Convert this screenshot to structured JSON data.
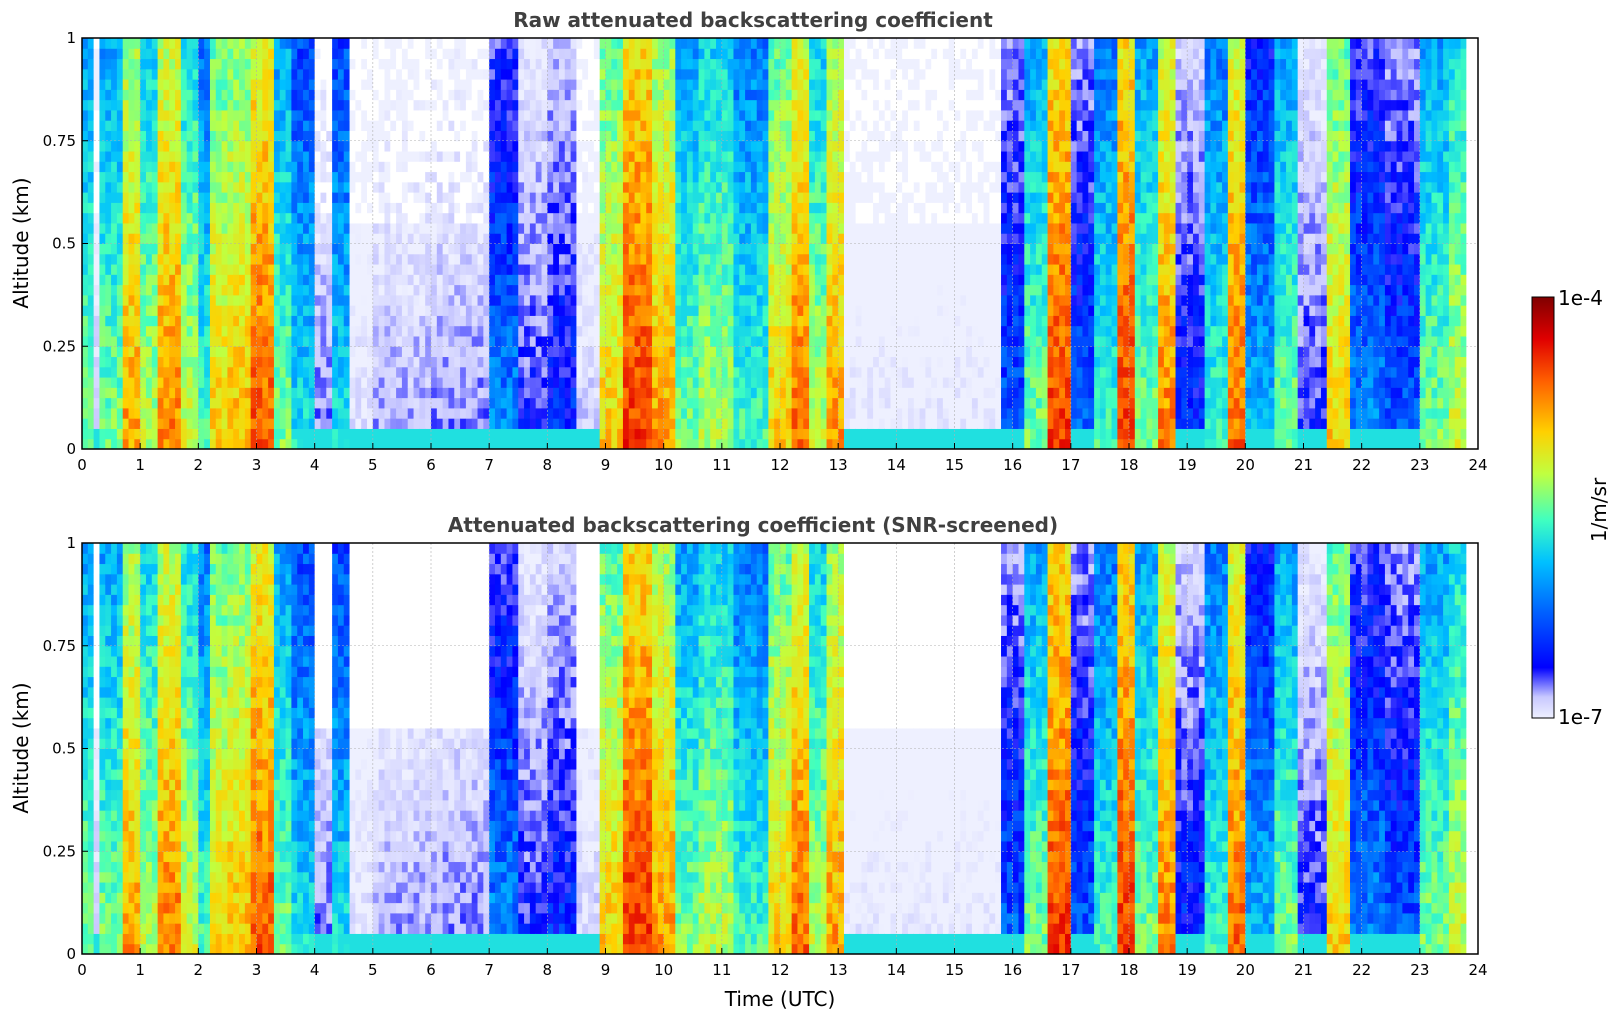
{
  "chart_data": [
    {
      "type": "heatmap",
      "title": "Raw attenuated backscattering coefficient",
      "xlabel": "",
      "ylabel": "Altitude (km)",
      "xlim": [
        0,
        24
      ],
      "ylim": [
        0,
        1
      ],
      "x_ticks": [
        "0",
        "1",
        "2",
        "3",
        "4",
        "5",
        "6",
        "7",
        "8",
        "9",
        "10",
        "11",
        "12",
        "13",
        "14",
        "15",
        "16",
        "17",
        "18",
        "19",
        "20",
        "21",
        "22",
        "23",
        "24"
      ],
      "y_ticks": [
        "0",
        "0.25",
        "0.5",
        "0.75",
        "1"
      ],
      "grid": true,
      "screened": false,
      "time_bands": [
        {
          "start": 0.0,
          "end": 0.2,
          "level": 0.55
        },
        {
          "start": 0.2,
          "end": 0.35,
          "level": 0.1
        },
        {
          "start": 0.35,
          "end": 0.7,
          "level": 0.55
        },
        {
          "start": 0.7,
          "end": 1.0,
          "level": 0.75
        },
        {
          "start": 1.0,
          "end": 1.3,
          "level": 0.6
        },
        {
          "start": 1.3,
          "end": 1.7,
          "level": 0.78
        },
        {
          "start": 1.7,
          "end": 2.0,
          "level": 0.62
        },
        {
          "start": 2.0,
          "end": 2.2,
          "level": 0.5
        },
        {
          "start": 2.2,
          "end": 2.5,
          "level": 0.7
        },
        {
          "start": 2.5,
          "end": 2.9,
          "level": 0.72
        },
        {
          "start": 2.9,
          "end": 3.3,
          "level": 0.82
        },
        {
          "start": 3.3,
          "end": 3.6,
          "level": 0.55
        },
        {
          "start": 3.6,
          "end": 4.0,
          "level": 0.45
        },
        {
          "start": 4.0,
          "end": 4.3,
          "level": 0.15
        },
        {
          "start": 4.3,
          "end": 4.6,
          "level": 0.45
        },
        {
          "start": 4.6,
          "end": 5.0,
          "level": 0.05
        },
        {
          "start": 5.0,
          "end": 6.0,
          "level": 0.12
        },
        {
          "start": 6.0,
          "end": 7.0,
          "level": 0.14
        },
        {
          "start": 7.0,
          "end": 7.5,
          "level": 0.35
        },
        {
          "start": 7.5,
          "end": 8.0,
          "level": 0.2
        },
        {
          "start": 8.0,
          "end": 8.5,
          "level": 0.25
        },
        {
          "start": 8.5,
          "end": 8.9,
          "level": 0.08
        },
        {
          "start": 8.9,
          "end": 9.3,
          "level": 0.7
        },
        {
          "start": 9.3,
          "end": 9.8,
          "level": 0.85
        },
        {
          "start": 9.8,
          "end": 10.2,
          "level": 0.75
        },
        {
          "start": 10.2,
          "end": 10.6,
          "level": 0.55
        },
        {
          "start": 10.6,
          "end": 11.2,
          "level": 0.6
        },
        {
          "start": 11.2,
          "end": 11.8,
          "level": 0.5
        },
        {
          "start": 11.8,
          "end": 12.2,
          "level": 0.7
        },
        {
          "start": 12.2,
          "end": 12.5,
          "level": 0.8
        },
        {
          "start": 12.5,
          "end": 12.8,
          "level": 0.6
        },
        {
          "start": 12.8,
          "end": 13.1,
          "level": 0.75
        },
        {
          "start": 13.1,
          "end": 15.8,
          "level": 0.02
        },
        {
          "start": 15.8,
          "end": 16.2,
          "level": 0.3
        },
        {
          "start": 16.2,
          "end": 16.6,
          "level": 0.55
        },
        {
          "start": 16.6,
          "end": 17.0,
          "level": 0.85
        },
        {
          "start": 17.0,
          "end": 17.4,
          "level": 0.3
        },
        {
          "start": 17.4,
          "end": 17.8,
          "level": 0.5
        },
        {
          "start": 17.8,
          "end": 18.1,
          "level": 0.85
        },
        {
          "start": 18.1,
          "end": 18.5,
          "level": 0.55
        },
        {
          "start": 18.5,
          "end": 18.8,
          "level": 0.78
        },
        {
          "start": 18.8,
          "end": 19.3,
          "level": 0.25
        },
        {
          "start": 19.3,
          "end": 19.7,
          "level": 0.5
        },
        {
          "start": 19.7,
          "end": 20.0,
          "level": 0.8
        },
        {
          "start": 20.0,
          "end": 20.5,
          "level": 0.4
        },
        {
          "start": 20.5,
          "end": 20.9,
          "level": 0.55
        },
        {
          "start": 20.9,
          "end": 21.4,
          "level": 0.2
        },
        {
          "start": 21.4,
          "end": 21.8,
          "level": 0.7
        },
        {
          "start": 21.8,
          "end": 22.4,
          "level": 0.35
        },
        {
          "start": 22.4,
          "end": 23.0,
          "level": 0.3
        },
        {
          "start": 23.0,
          "end": 23.5,
          "level": 0.55
        },
        {
          "start": 23.5,
          "end": 23.8,
          "level": 0.62
        },
        {
          "start": 23.8,
          "end": 24.0,
          "level": null
        }
      ]
    },
    {
      "type": "heatmap",
      "title": "Attenuated backscattering coefficient (SNR-screened)",
      "xlabel": "Time (UTC)",
      "ylabel": "Altitude (km)",
      "xlim": [
        0,
        24
      ],
      "ylim": [
        0,
        1
      ],
      "x_ticks": [
        "0",
        "1",
        "2",
        "3",
        "4",
        "5",
        "6",
        "7",
        "8",
        "9",
        "10",
        "11",
        "12",
        "13",
        "14",
        "15",
        "16",
        "17",
        "18",
        "19",
        "20",
        "21",
        "22",
        "23",
        "24"
      ],
      "y_ticks": [
        "0",
        "0.25",
        "0.5",
        "0.75",
        "1"
      ],
      "grid": true,
      "screened": true
    }
  ],
  "colorbar": {
    "max_label": "1e-4",
    "min_label": "1e-7",
    "label": "1/m/sr",
    "colors": [
      "#eef0ff",
      "#c8c8ff",
      "#0000ff",
      "#0060ff",
      "#00c0ff",
      "#40ffc0",
      "#c0ff40",
      "#ffd000",
      "#ff6000",
      "#e00000",
      "#800000"
    ]
  }
}
